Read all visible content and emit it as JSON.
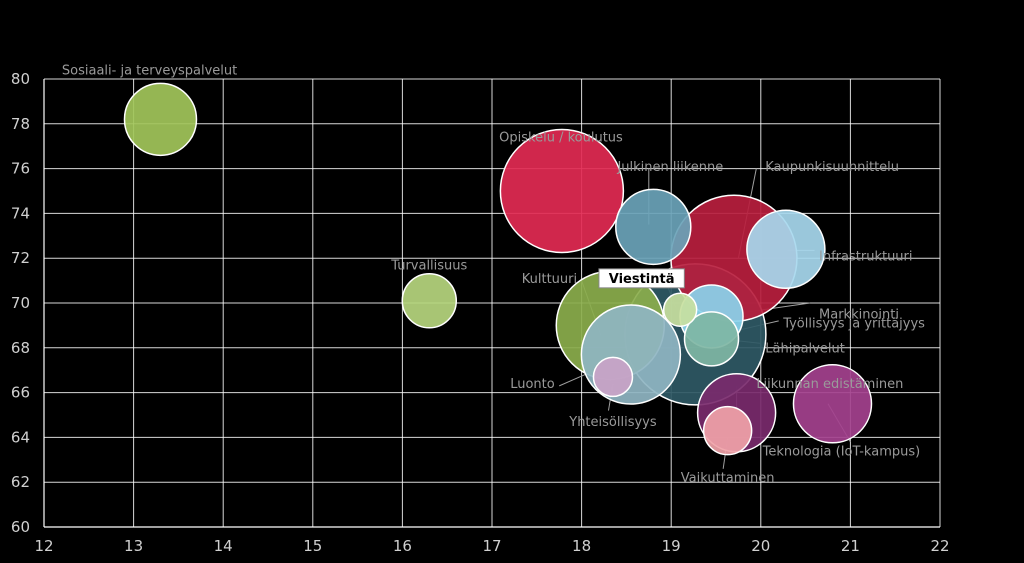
{
  "chart_data": {
    "type": "bubble",
    "xlim": [
      12,
      22
    ],
    "ylim": [
      60,
      80
    ],
    "xticks": [
      "12",
      "13",
      "14",
      "15",
      "16",
      "17",
      "18",
      "19",
      "20",
      "21",
      "22"
    ],
    "yticks": [
      "60",
      "62",
      "64",
      "66",
      "68",
      "70",
      "72",
      "74",
      "76",
      "78",
      "80"
    ],
    "grid": true,
    "points": [
      {
        "label": "Sosiaali- ja terveyspalvelut",
        "x": 13.3,
        "y": 78.2,
        "size": 2.4,
        "color": "#a2c65a",
        "lx": 12.2,
        "ly": 80.2,
        "anchor": "start",
        "leader": false
      },
      {
        "label": "Turvallisuus",
        "x": 16.3,
        "y": 70.1,
        "size": 1.8,
        "color": "#b6d67e",
        "lx": 16.3,
        "ly": 71.5,
        "anchor": "middle",
        "leader": false
      },
      {
        "label": "Opiskelu / koulutus",
        "x": 17.78,
        "y": 75.0,
        "size": 4.1,
        "color": "#e22a52",
        "lx": 17.77,
        "ly": 77.2,
        "anchor": "middle",
        "leader": false
      },
      {
        "label": "Julkinen liikenne",
        "x": 18.8,
        "y": 73.4,
        "size": 2.5,
        "color": "#6aa3b8",
        "lx": 18.4,
        "ly": 75.9,
        "anchor": "start",
        "leader": true,
        "ex": 18.75,
        "ey": 73.5,
        "jx": 18.75,
        "jy": 76.0
      },
      {
        "label": "Kaupunkisuunnittelu",
        "x": 19.7,
        "y": 72.0,
        "size": 4.2,
        "color": "#b81e3e",
        "lx": 20.05,
        "ly": 75.9,
        "anchor": "start",
        "leader": true,
        "ex": 19.75,
        "ey": 72.0,
        "jx": 19.95,
        "jy": 76.0
      },
      {
        "label": "Infrastruktuuri",
        "x": 20.28,
        "y": 72.4,
        "size": 2.6,
        "color": "#a7d8ee",
        "lx": 20.65,
        "ly": 71.9,
        "anchor": "start",
        "leader": true,
        "ex": 20.3,
        "ey": 72.35,
        "jx": 20.6,
        "jy": 72.35
      },
      {
        "label": "Kulttuuri",
        "x": 18.32,
        "y": 69.0,
        "size": 3.6,
        "color": "#8bae4c",
        "lx": 17.95,
        "ly": 70.9,
        "anchor": "end",
        "leader": true,
        "ex": 18.22,
        "ey": 68.5,
        "jx": 18.0,
        "jy": 71.0
      },
      {
        "label": "Viestintä",
        "x": 19.1,
        "y": 69.7,
        "size": 1.1,
        "color": "#c8e0a0",
        "lx": 18.67,
        "ly": 70.9,
        "anchor": "middle",
        "leader": true,
        "ex": 19.05,
        "ey": 69.8,
        "jx": 18.95,
        "jy": 70.85,
        "highlight": true
      },
      {
        "label": "Markkinointi",
        "x": 19.45,
        "y": 69.4,
        "size": 2.1,
        "color": "#8ad4ec",
        "lx": 20.65,
        "ly": 69.3,
        "anchor": "start",
        "leader": true,
        "ex": 19.5,
        "ey": 69.4,
        "jx": 20.55,
        "jy": 70.0
      },
      {
        "label": "Työllisyys ja yrittäjyys",
        "x": 19.27,
        "y": 68.6,
        "size": 4.7,
        "color": "#2f5965",
        "lx": 20.25,
        "ly": 68.9,
        "anchor": "start",
        "leader": true,
        "ex": 19.55,
        "ey": 68.6,
        "jx": 20.2,
        "jy": 69.2
      },
      {
        "label": "Lähipalvelut",
        "x": 19.45,
        "y": 68.4,
        "size": 1.8,
        "color": "#7fb6a4",
        "lx": 20.05,
        "ly": 67.8,
        "anchor": "start",
        "leader": true,
        "ex": 19.55,
        "ey": 68.4,
        "jx": 20.0,
        "jy": 68.2
      },
      {
        "label": "Luonto",
        "x": 18.55,
        "y": 67.7,
        "size": 3.3,
        "color": "#8fb5c2",
        "lx": 17.7,
        "ly": 66.2,
        "anchor": "end",
        "leader": true,
        "ex": 18.55,
        "ey": 67.7,
        "jx": 17.75,
        "jy": 66.3
      },
      {
        "label": "Yhteisöllisyys",
        "x": 18.35,
        "y": 66.7,
        "size": 1.3,
        "color": "#c9a3c7",
        "lx": 18.35,
        "ly": 64.5,
        "anchor": "middle",
        "leader": true,
        "ex": 18.35,
        "ey": 66.4,
        "jx": 18.3,
        "jy": 65.2
      },
      {
        "label": "Liikunnan edistäminen",
        "x": 19.73,
        "y": 65.1,
        "size": 2.6,
        "color": "#7a2a6c",
        "lx": 19.95,
        "ly": 66.2,
        "anchor": "start",
        "leader": true,
        "ex": 19.73,
        "ey": 65.2,
        "jx": 19.73,
        "jy": 66.3
      },
      {
        "label": "Teknologia (IoT-kampus)",
        "x": 20.8,
        "y": 65.5,
        "size": 2.6,
        "color": "#a4418e",
        "lx": 20.9,
        "ly": 63.2,
        "anchor": "middle",
        "leader": true,
        "ex": 20.75,
        "ey": 65.5,
        "jx": 21.0,
        "jy": 63.8
      },
      {
        "label": "Vaikuttaminen",
        "x": 19.63,
        "y": 64.3,
        "size": 1.6,
        "color": "#f0a2a8",
        "lx": 19.63,
        "ly": 62.0,
        "anchor": "middle",
        "leader": true,
        "ex": 19.63,
        "ey": 64.0,
        "jx": 19.58,
        "jy": 62.6
      }
    ]
  }
}
